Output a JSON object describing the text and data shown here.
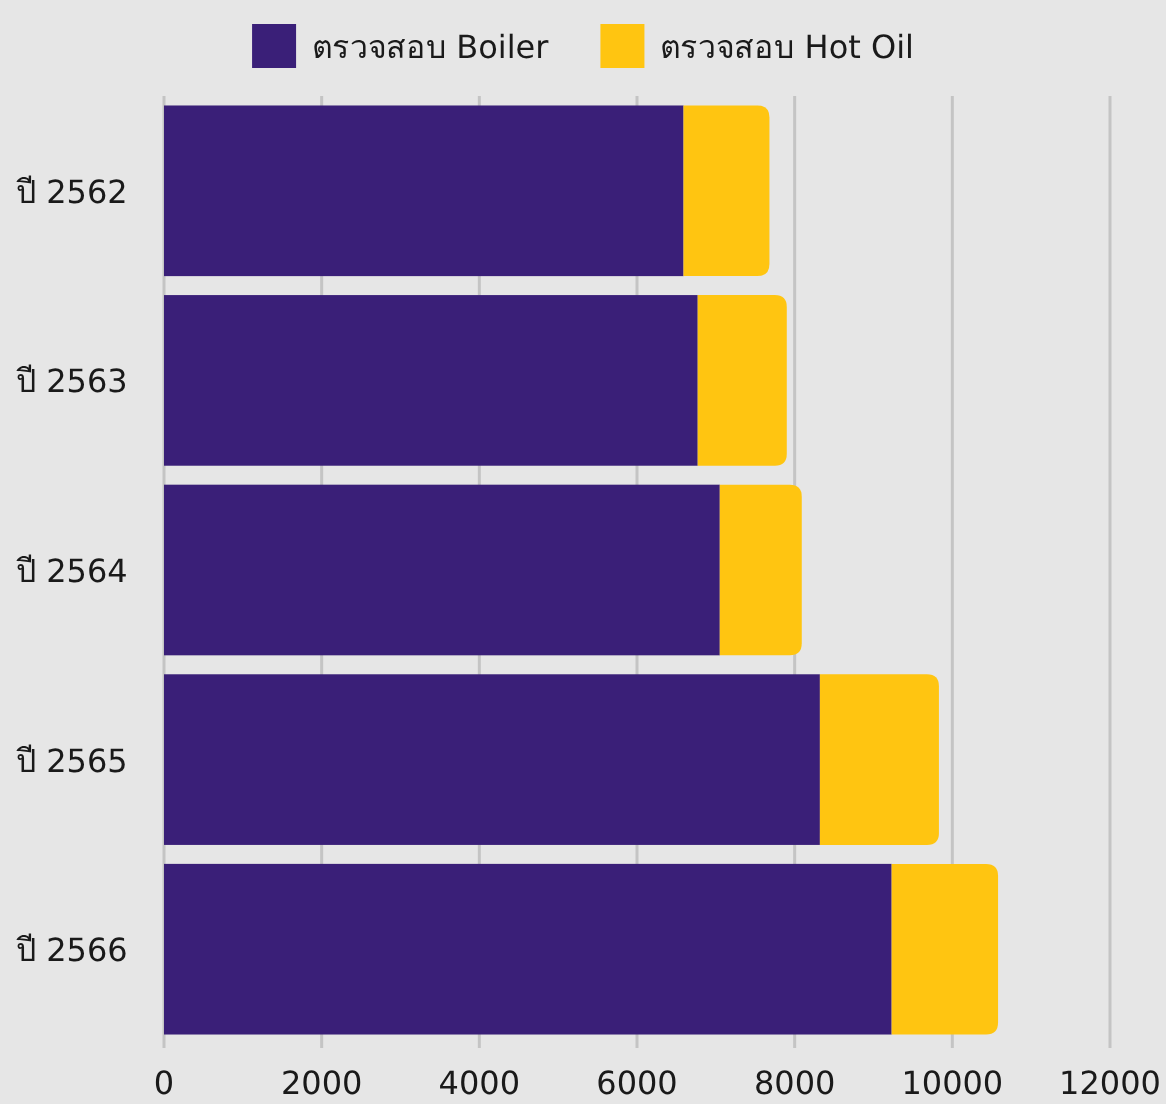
{
  "chart_data": {
    "type": "bar",
    "orientation": "horizontal",
    "stacked": true,
    "grid": "x",
    "legend": "top",
    "categories": [
      "ปี 2562",
      "ปี 2563",
      "ปี 2564",
      "ปี 2565",
      "ปี 2566"
    ],
    "series": [
      {
        "name": "ตรวจสอบ Boiler",
        "color": "#3a1f78",
        "values": [
          6590,
          6770,
          7050,
          8320,
          9230
        ]
      },
      {
        "name": "ตรวจสอบ Hot Oil",
        "color": "#ffc511",
        "values": [
          1090,
          1130,
          1040,
          1510,
          1350
        ]
      }
    ],
    "xlim": [
      0,
      12000
    ],
    "xticks": [
      0,
      2000,
      4000,
      6000,
      8000,
      10000,
      12000
    ]
  }
}
